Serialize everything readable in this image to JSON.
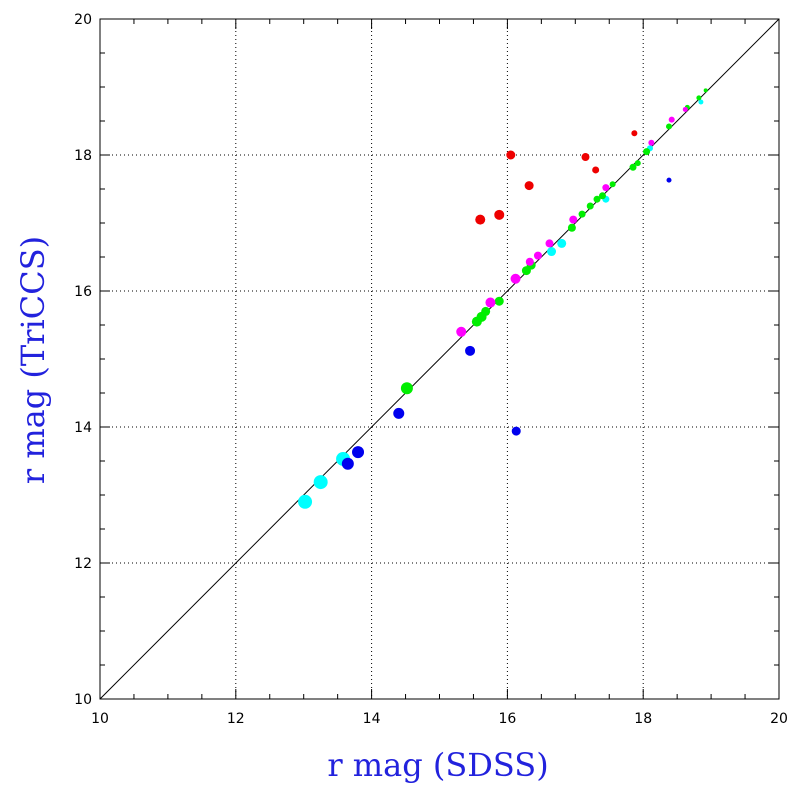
{
  "chart_data": {
    "type": "scatter",
    "title": "",
    "xlabel": "r mag (SDSS)",
    "ylabel": "r mag (TriCCS)",
    "xlim": [
      10,
      20
    ],
    "ylim": [
      10,
      20
    ],
    "x_ticks": [
      "10",
      "12",
      "14",
      "16",
      "18",
      "20"
    ],
    "y_ticks": [
      "10",
      "12",
      "14",
      "16",
      "18",
      "20"
    ],
    "grid": true,
    "reference_line": {
      "x": [
        10,
        20
      ],
      "y": [
        10,
        20
      ]
    },
    "label_color": "#2222dd",
    "series": [
      {
        "color": "#00ffff",
        "points": [
          [
            13.02,
            12.9,
            7
          ],
          [
            13.25,
            13.19,
            7
          ],
          [
            13.58,
            13.53,
            7
          ],
          [
            16.65,
            16.58,
            4.5
          ],
          [
            16.8,
            16.7,
            4.5
          ],
          [
            17.45,
            17.35,
            3.5
          ],
          [
            18.1,
            18.1,
            3
          ],
          [
            18.85,
            18.78,
            2.5
          ]
        ]
      },
      {
        "color": "#0000ee",
        "points": [
          [
            13.65,
            13.46,
            6
          ],
          [
            13.8,
            13.63,
            6
          ],
          [
            14.4,
            14.2,
            5.5
          ],
          [
            15.45,
            15.12,
            5
          ],
          [
            16.13,
            13.94,
            4.5
          ],
          [
            18.38,
            17.63,
            2.5
          ]
        ]
      },
      {
        "color": "#00ee00",
        "points": [
          [
            14.52,
            14.57,
            6
          ],
          [
            15.55,
            15.55,
            5
          ],
          [
            15.62,
            15.62,
            5
          ],
          [
            15.68,
            15.7,
            4.5
          ],
          [
            15.88,
            15.85,
            4.5
          ],
          [
            16.28,
            16.3,
            4.5
          ],
          [
            16.35,
            16.38,
            4.5
          ],
          [
            16.95,
            16.93,
            4
          ],
          [
            17.1,
            17.13,
            3.5
          ],
          [
            17.22,
            17.25,
            3.5
          ],
          [
            17.32,
            17.35,
            3.5
          ],
          [
            17.4,
            17.4,
            3.5
          ],
          [
            17.55,
            17.57,
            3
          ],
          [
            17.85,
            17.82,
            3.5
          ],
          [
            17.92,
            17.88,
            3
          ],
          [
            18.05,
            18.05,
            3.5
          ],
          [
            18.38,
            18.42,
            3
          ],
          [
            18.65,
            18.7,
            2.5
          ],
          [
            18.82,
            18.84,
            2.5
          ],
          [
            18.92,
            18.95,
            2
          ]
        ]
      },
      {
        "color": "#ff00ff",
        "points": [
          [
            15.32,
            15.4,
            5
          ],
          [
            15.75,
            15.83,
            5
          ],
          [
            16.12,
            16.18,
            5
          ],
          [
            16.33,
            16.43,
            4
          ],
          [
            16.45,
            16.52,
            4
          ],
          [
            16.62,
            16.7,
            4
          ],
          [
            16.97,
            17.05,
            4
          ],
          [
            17.45,
            17.52,
            3.5
          ],
          [
            18.12,
            18.18,
            3
          ],
          [
            18.42,
            18.52,
            3
          ],
          [
            18.62,
            18.67,
            2.5
          ]
        ]
      },
      {
        "color": "#ee0000",
        "points": [
          [
            15.6,
            17.05,
            5
          ],
          [
            15.88,
            17.12,
            5
          ],
          [
            16.05,
            18.0,
            4.5
          ],
          [
            16.32,
            17.55,
            4.5
          ],
          [
            17.15,
            17.97,
            4
          ],
          [
            17.3,
            17.78,
            3.5
          ],
          [
            17.87,
            18.32,
            3
          ]
        ]
      }
    ]
  }
}
